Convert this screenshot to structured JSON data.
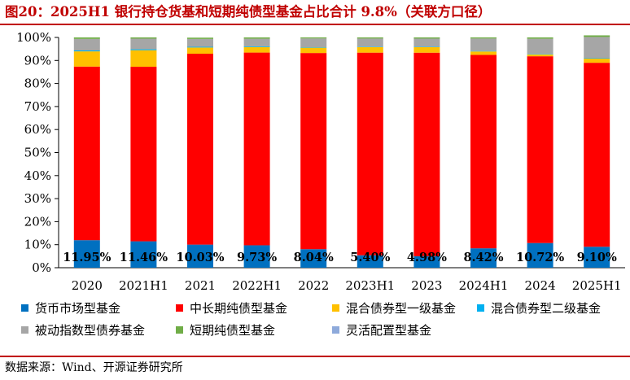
{
  "title": "图20：2025H1 银行持仓货基和短期纯债型基金占比合计 9.8%（关联方口径）",
  "source": "数据来源：Wind、开源证券研究所",
  "colors": {
    "title": "#c00000",
    "series": [
      "#0070c0",
      "#ff0000",
      "#ffc000",
      "#00b0f0",
      "#a6a6a6",
      "#70ad47",
      "#8eaadb"
    ]
  },
  "chart_data": {
    "type": "bar",
    "stacked": true,
    "categories": [
      "2020",
      "2021H1",
      "2021",
      "2022H1",
      "2022",
      "2023H1",
      "2023",
      "2024H1",
      "2024",
      "2025H1"
    ],
    "yticks": [
      "0%",
      "10%",
      "20%",
      "30%",
      "40%",
      "50%",
      "60%",
      "70%",
      "80%",
      "90%",
      "100%"
    ],
    "ylim": [
      0,
      100
    ],
    "grid": false,
    "legend_position": "bottom",
    "data_labels": [
      "11.95%",
      "11.46%",
      "10.03%",
      "9.73%",
      "8.04%",
      "5.40%",
      "4.98%",
      "8.42%",
      "10.72%",
      "9.10%"
    ],
    "series": [
      {
        "name": "货币市场型基金",
        "values": [
          11.95,
          11.46,
          10.03,
          9.73,
          8.04,
          5.4,
          4.98,
          8.42,
          10.72,
          9.1
        ]
      },
      {
        "name": "中长期纯债型基金",
        "values": [
          75.4,
          75.8,
          82.9,
          83.7,
          85.2,
          88.0,
          88.4,
          84.0,
          81.1,
          79.9
        ]
      },
      {
        "name": "混合债券型一级基金",
        "values": [
          6.6,
          7.2,
          2.7,
          2.4,
          2.3,
          2.4,
          2.4,
          1.5,
          0.8,
          1.8
        ]
      },
      {
        "name": "混合债券型二级基金",
        "values": [
          0.4,
          0.4,
          0.3,
          0.3,
          0.2,
          0.2,
          0.2,
          0.2,
          0.2,
          0.2
        ]
      },
      {
        "name": "被动指数型债券基金",
        "values": [
          5.0,
          4.6,
          3.4,
          3.3,
          3.8,
          3.5,
          3.5,
          5.4,
          6.6,
          9.2
        ]
      },
      {
        "name": "短期纯债型基金",
        "values": [
          0.65,
          0.54,
          0.57,
          0.57,
          0.46,
          0.5,
          0.52,
          0.48,
          0.58,
          0.7
        ]
      },
      {
        "name": "灵活配置型基金",
        "values": [
          0,
          0,
          0,
          0,
          0,
          0,
          0,
          0,
          0,
          0
        ]
      }
    ]
  }
}
